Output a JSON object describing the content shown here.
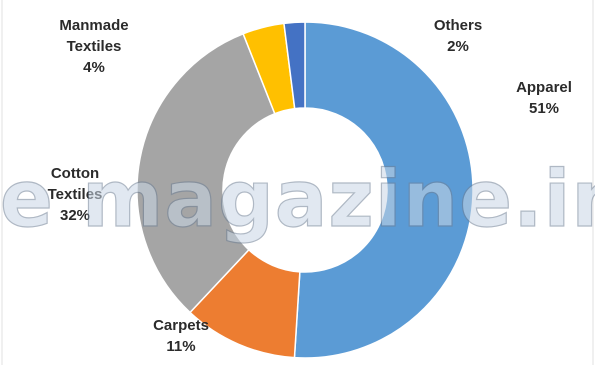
{
  "chart_data": {
    "type": "pie",
    "donut": true,
    "slices": [
      {
        "label_lines": [
          "Apparel"
        ],
        "value": 51,
        "value_label": "51%",
        "color": "#5b9bd5"
      },
      {
        "label_lines": [
          "Carpets"
        ],
        "value": 11,
        "value_label": "11%",
        "color": "#ed7d31"
      },
      {
        "label_lines": [
          "Cotton",
          "Textiles"
        ],
        "value": 32,
        "value_label": "32%",
        "color": "#a5a5a5"
      },
      {
        "label_lines": [
          "Manmade",
          "Textiles"
        ],
        "value": 4,
        "value_label": "4%",
        "color": "#ffc000"
      },
      {
        "label_lines": [
          "Others"
        ],
        "value": 2,
        "value_label": "2%",
        "color": "#4472c4"
      }
    ]
  },
  "watermark": "e magazine.in"
}
